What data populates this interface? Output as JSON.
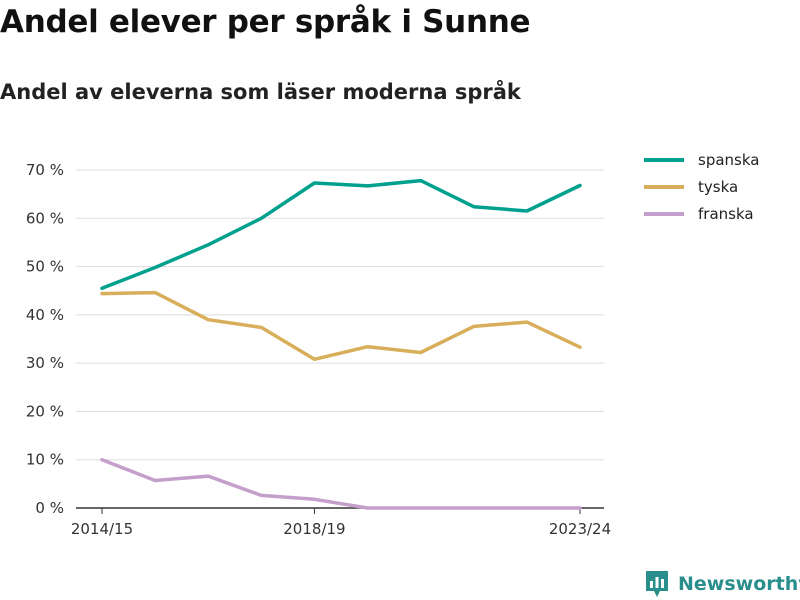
{
  "title": "Andel elever per språk i Sunne",
  "subtitle": "Andel av eleverna som läser moderna språk",
  "brand": {
    "name": "Newsworthy",
    "icon": "newsworthy-logo-icon",
    "color": "#2a8f8c"
  },
  "chart_data": {
    "type": "line",
    "x": [
      "2014/15",
      "2015/16",
      "2016/17",
      "2017/18",
      "2018/19",
      "2019/20",
      "2020/21",
      "2021/22",
      "2022/23",
      "2023/24"
    ],
    "x_tick_labels": [
      "2014/15",
      "2018/19",
      "2023/24"
    ],
    "y_ticks": [
      0,
      10,
      20,
      30,
      40,
      50,
      60,
      70
    ],
    "y_tick_labels": [
      "0 %",
      "10 %",
      "20 %",
      "30 %",
      "40 %",
      "50 %",
      "60 %",
      "70 %"
    ],
    "ylim": [
      0,
      70
    ],
    "grid": "horizontal",
    "legend_position": "top-right",
    "series": [
      {
        "name": "spanska",
        "color": "#00a08e",
        "values": [
          45.5,
          49.8,
          54.5,
          60.0,
          67.3,
          66.7,
          67.8,
          62.4,
          61.5,
          66.8
        ]
      },
      {
        "name": "tyska",
        "color": "#d8ae5a",
        "values": [
          44.4,
          44.6,
          39.0,
          37.4,
          30.8,
          33.4,
          32.2,
          37.6,
          38.5,
          33.3
        ]
      },
      {
        "name": "franska",
        "color": "#c49fcc",
        "values": [
          10.0,
          5.7,
          6.6,
          2.6,
          1.8,
          0.0,
          0.0,
          0.0,
          0.0,
          0.0
        ]
      }
    ]
  }
}
